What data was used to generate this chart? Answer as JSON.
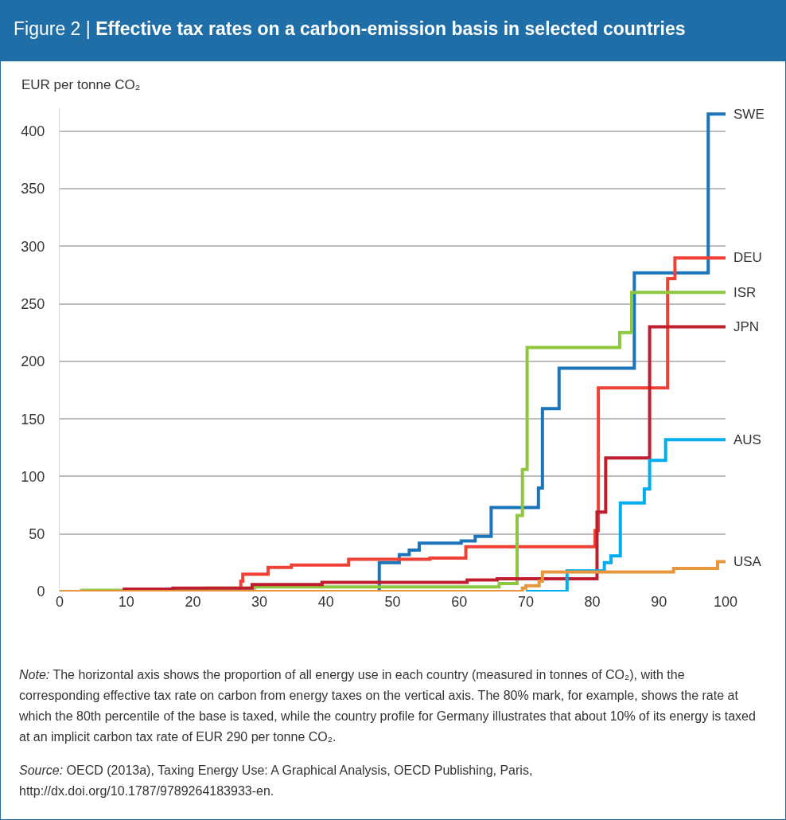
{
  "chart_data": {
    "type": "step",
    "title": "Figure 2 | Effective tax rates on a carbon-emission basis in selected countries",
    "ylabel": "EUR per tonne CO₂",
    "xlim": [
      0,
      100
    ],
    "xticks": [
      0,
      10,
      20,
      30,
      40,
      50,
      60,
      70,
      80,
      90,
      100
    ],
    "ylim": [
      0,
      420
    ],
    "yticks": [
      0,
      50,
      100,
      150,
      200,
      250,
      300,
      350,
      400
    ],
    "grid": "y",
    "legend": false,
    "marker": "none",
    "line_style": "solid",
    "series": [
      {
        "name": "SWE",
        "color": "#1b75bb",
        "x": [
          0,
          48,
          51,
          52.5,
          54,
          60.3,
          62.4,
          64.8,
          71.9,
          72.5,
          75,
          86.3,
          97.4,
          100
        ],
        "values": [
          0,
          25,
          32,
          36,
          42,
          44,
          48,
          73,
          90,
          159,
          194,
          277,
          415,
          415
        ]
      },
      {
        "name": "DEU",
        "color": "#ef4136",
        "x": [
          0,
          27.2,
          27.5,
          31.3,
          34.8,
          43.4,
          55.6,
          61,
          80.4,
          80.9,
          91.3,
          92.4,
          100
        ],
        "values": [
          0,
          9,
          15,
          21,
          23,
          28,
          29,
          39,
          53,
          177,
          272,
          290,
          290
        ]
      },
      {
        "name": "ISR",
        "color": "#8dc63f",
        "x": [
          0,
          3.3,
          22,
          29.3,
          66,
          68.7,
          69.5,
          70.2,
          84.1,
          85.9,
          100
        ],
        "values": [
          0,
          1,
          3,
          4,
          7,
          66,
          106,
          212,
          225,
          260,
          260
        ]
      },
      {
        "name": "JPN",
        "color": "#be1e2d",
        "x": [
          0,
          9.7,
          17,
          28.9,
          39.4,
          61.2,
          65.7,
          80.7,
          82,
          88.6,
          100
        ],
        "values": [
          0,
          2,
          3,
          6,
          8,
          10,
          11,
          69,
          116,
          230,
          230
        ]
      },
      {
        "name": "AUS",
        "color": "#00aeef",
        "x": [
          70,
          76.2,
          81.8,
          82.8,
          84.2,
          87.8,
          88.6,
          91,
          100
        ],
        "values": [
          0,
          18,
          25,
          31,
          77,
          89,
          114,
          132,
          132
        ]
      },
      {
        "name": "USA",
        "color": "#e8963c",
        "x": [
          0,
          69.5,
          70,
          72,
          72.5,
          92.2,
          98.8,
          100
        ],
        "values": [
          0,
          3,
          5,
          9,
          17,
          20,
          26,
          26
        ]
      }
    ],
    "annotations": [
      "Note: The horizontal axis shows the proportion of all energy use in each country (measured in tonnes of CO₂), with the corresponding effective tax rate on carbon from energy taxes on the vertical axis. The 80% mark, for example, shows the rate at which the 80th percentile of the base is taxed, while the country profile for Germany illustrates that about 10% of its energy is taxed at an implicit carbon tax rate of EUR 290 per tonne CO₂.",
      "Source: OECD (2013a), Taxing Energy Use: A Graphical Analysis, OECD Publishing, Paris, http://dx.doi.org/10.1787/9789264183933-en."
    ]
  }
}
